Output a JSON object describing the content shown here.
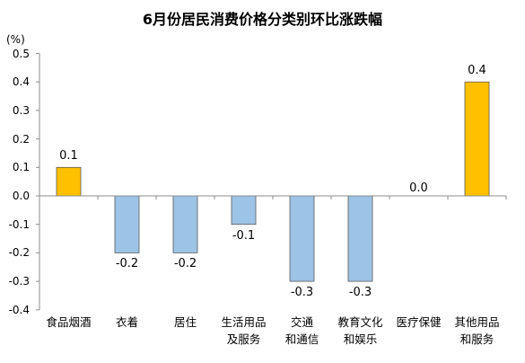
{
  "chart_data": {
    "type": "bar",
    "title": "6月份居民消费价格分类别环比涨跌幅",
    "ylabel": "(%)",
    "xlabel": "",
    "categories": [
      "食品烟酒",
      "衣着",
      "居住",
      "生活用品\n及服务",
      "交通\n和通信",
      "教育文化\n和娱乐",
      "医疗保健",
      "其他用品\n和服务"
    ],
    "values": [
      0.1,
      -0.2,
      -0.2,
      -0.1,
      -0.3,
      -0.3,
      0.0,
      0.4
    ],
    "data_labels": [
      "0.1",
      "-0.2",
      "-0.2",
      "-0.1",
      "-0.3",
      "-0.3",
      "0.0",
      "0.4"
    ],
    "ylim": [
      -0.4,
      0.5
    ],
    "yticks": [
      "-0.4",
      "-0.3",
      "-0.2",
      "-0.1",
      "0.0",
      "0.1",
      "0.2",
      "0.3",
      "0.4",
      "0.5"
    ],
    "grid": false,
    "legend": "none",
    "colors": {
      "positive": "#FFC000",
      "negative": "#9DC3E6",
      "bar_edge": "#5A5A5A",
      "axis": "#8C8C8C"
    }
  }
}
